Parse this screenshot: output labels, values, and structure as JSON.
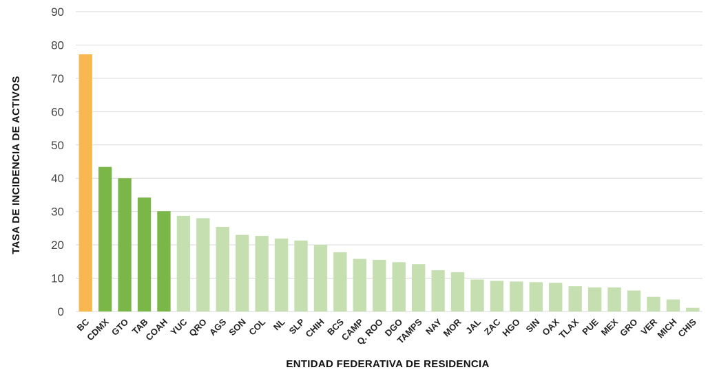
{
  "chart_data": {
    "type": "bar",
    "xlabel": "ENTIDAD FEDERATIVA DE RESIDENCIA",
    "ylabel": "TASA DE INCIDENCIA DE ACTIVOS",
    "ylim": [
      0,
      90
    ],
    "yticks": [
      0,
      10,
      20,
      30,
      40,
      50,
      60,
      70,
      80,
      90
    ],
    "grid": true,
    "categories": [
      "BC",
      "CDMX",
      "GTO",
      "TAB",
      "COAH",
      "YUC",
      "QRO",
      "AGS",
      "SON",
      "COL",
      "NL",
      "SLP",
      "CHIH",
      "BCS",
      "CAMP",
      "Q. ROO",
      "DGO",
      "TAMPS",
      "NAY",
      "MOR",
      "JAL",
      "ZAC",
      "HGO",
      "SIN",
      "OAX",
      "TLAX",
      "PUE",
      "MEX",
      "GRO",
      "VER",
      "MICH",
      "CHIS"
    ],
    "values": [
      77.2,
      43.4,
      40.0,
      34.2,
      30.1,
      28.7,
      28.0,
      25.4,
      23.0,
      22.7,
      21.9,
      21.3,
      20.0,
      17.8,
      15.8,
      15.5,
      14.8,
      14.2,
      12.4,
      11.8,
      9.6,
      9.2,
      9.0,
      8.8,
      8.6,
      7.6,
      7.2,
      7.2,
      6.3,
      4.4,
      3.6,
      1.1
    ],
    "colors": [
      "#F9B84F",
      "#7AB648",
      "#7AB648",
      "#7AB648",
      "#7AB648",
      "#C5DFB0",
      "#C5DFB0",
      "#C5DFB0",
      "#C5DFB0",
      "#C5DFB0",
      "#C5DFB0",
      "#C5DFB0",
      "#C5DFB0",
      "#C5DFB0",
      "#C5DFB0",
      "#C5DFB0",
      "#C5DFB0",
      "#C5DFB0",
      "#C5DFB0",
      "#C5DFB0",
      "#C5DFB0",
      "#C5DFB0",
      "#C5DFB0",
      "#C5DFB0",
      "#C5DFB0",
      "#C5DFB0",
      "#C5DFB0",
      "#C5DFB0",
      "#C5DFB0",
      "#C5DFB0",
      "#C5DFB0",
      "#C5DFB0"
    ]
  }
}
